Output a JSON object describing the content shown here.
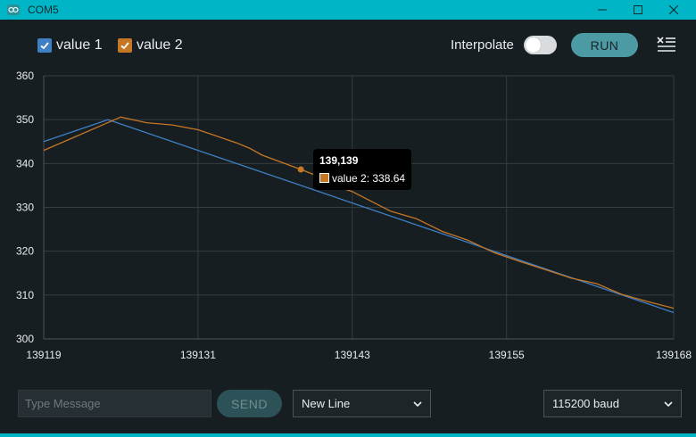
{
  "window": {
    "title": "COM5",
    "icon": "arduino-icon"
  },
  "toolbar": {
    "series": [
      {
        "label": "value 1",
        "checked": true,
        "color": "#3f7fc4"
      },
      {
        "label": "value 2",
        "checked": true,
        "color": "#c67726"
      }
    ],
    "interpolate_label": "Interpolate",
    "interpolate_on": false,
    "run_label": "RUN",
    "clear_icon": "clear-list-icon"
  },
  "chart_data": {
    "type": "line",
    "title": "",
    "xlabel": "",
    "ylabel": "",
    "xlim": [
      139119,
      139168
    ],
    "ylim": [
      300,
      360
    ],
    "x_ticks": [
      "139119",
      "139131",
      "139143",
      "139155",
      "139168"
    ],
    "y_ticks": [
      "300",
      "310",
      "320",
      "330",
      "340",
      "350",
      "360"
    ],
    "grid": true,
    "series": [
      {
        "name": "value 1",
        "color": "#3f7fc4",
        "points": [
          [
            139119,
            345
          ],
          [
            139124,
            350
          ],
          [
            139168,
            306
          ]
        ]
      },
      {
        "name": "value 2",
        "color": "#c67726",
        "points": [
          [
            139119,
            343
          ],
          [
            139125,
            350.6
          ],
          [
            139127,
            349.3
          ],
          [
            139129,
            348.8
          ],
          [
            139131,
            347.7
          ],
          [
            139132,
            346.7
          ],
          [
            139134,
            344.7
          ],
          [
            139135,
            343.5
          ],
          [
            139136,
            341.9
          ],
          [
            139139,
            338.64
          ],
          [
            139141,
            336.3
          ],
          [
            139142,
            334.5
          ],
          [
            139143,
            333.6
          ],
          [
            139144,
            332.1
          ],
          [
            139146,
            329.1
          ],
          [
            139148,
            327.4
          ],
          [
            139150,
            324.5
          ],
          [
            139152,
            322.5
          ],
          [
            139154,
            319.7
          ],
          [
            139156,
            317.7
          ],
          [
            139158,
            315.8
          ],
          [
            139160,
            313.9
          ],
          [
            139162,
            312.6
          ],
          [
            139164,
            310.1
          ],
          [
            139166,
            308.5
          ],
          [
            139168,
            307
          ]
        ]
      }
    ],
    "tooltip": {
      "title": "139,139",
      "series_label": "value 2: 338.64",
      "point": [
        139139,
        338.64
      ]
    }
  },
  "footer": {
    "message_placeholder": "Type Message",
    "message_value": "",
    "send_label": "SEND",
    "line_ending": "New Line",
    "baud_rate": "115200 baud"
  }
}
